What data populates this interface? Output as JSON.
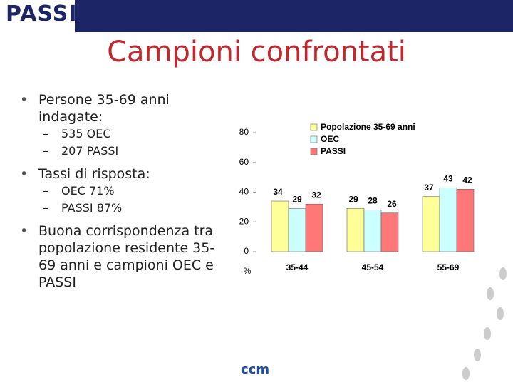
{
  "logo": "PASSI",
  "title": "Campioni confrontati",
  "bullets": [
    {
      "text": "Persone 35-69 anni indagate:",
      "sub": [
        "535 OEC",
        "207 PASSI"
      ]
    },
    {
      "text": "Tassi di risposta:",
      "sub": [
        "OEC 71%",
        "PASSI 87%"
      ]
    },
    {
      "text": "Buona corrispondenza tra popolazione residente 35-69 anni e campioni OEC e PASSI",
      "sub": []
    }
  ],
  "footer_logo": "ccm",
  "chart_data": {
    "type": "bar",
    "y_label": "%",
    "categories": [
      "35-44",
      "45-54",
      "55-69"
    ],
    "series": [
      {
        "name": "Popolazione 35-69 anni",
        "color": "#ffff99",
        "values": [
          34,
          29,
          37
        ]
      },
      {
        "name": "OEC",
        "color": "#ccffff",
        "values": [
          29,
          28,
          43
        ]
      },
      {
        "name": "PASSI",
        "color": "#ff7777",
        "values": [
          32,
          26,
          42
        ]
      }
    ],
    "ylim": [
      0,
      80
    ],
    "yticks": [
      0,
      20,
      40,
      60,
      80
    ],
    "legend": "top-right",
    "grid": false
  }
}
